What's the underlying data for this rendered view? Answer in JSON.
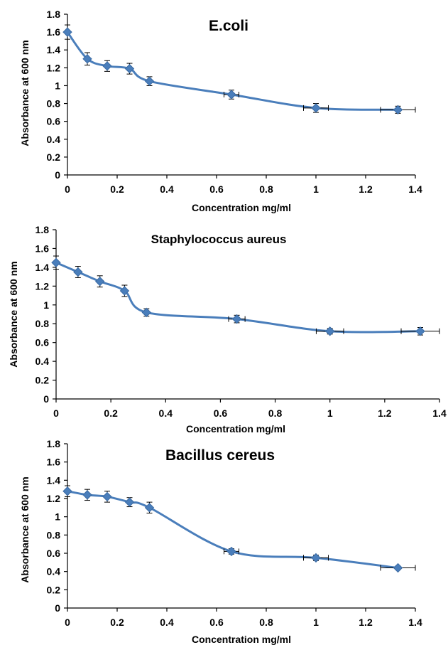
{
  "chart_data": [
    {
      "type": "line",
      "title": "E.coli",
      "xlabel": "Concentration mg/ml",
      "ylabel": "Absorbance at 600 nm",
      "xlim": [
        0,
        1.4
      ],
      "ylim": [
        0,
        1.8
      ],
      "xticks": [
        "0",
        "0.2",
        "0.4",
        "0.6",
        "0.8",
        "1",
        "1.2",
        "1.4"
      ],
      "yticks": [
        "0",
        "0.2",
        "0.4",
        "0.6",
        "0.8",
        "1",
        "1.2",
        "1.4",
        "1.6",
        "1.8"
      ],
      "x": [
        0,
        0.08,
        0.16,
        0.25,
        0.33,
        0.66,
        1.0,
        1.33
      ],
      "y": [
        1.6,
        1.3,
        1.22,
        1.19,
        1.05,
        0.9,
        0.75,
        0.73
      ],
      "y_err": [
        0.08,
        0.07,
        0.06,
        0.06,
        0.05,
        0.05,
        0.05,
        0.04
      ],
      "x_err": [
        0,
        0,
        0,
        0,
        0,
        0.03,
        0.05,
        0.07
      ]
    },
    {
      "type": "line",
      "title": "Staphylococcus aureus",
      "xlabel": "Concentration mg/ml",
      "ylabel": "Absorbance at 600 nm",
      "xlim": [
        0,
        1.4
      ],
      "ylim": [
        0,
        1.8
      ],
      "xticks": [
        "0",
        "0.2",
        "0.4",
        "0.6",
        "0.8",
        "1",
        "1.2",
        "1.4"
      ],
      "yticks": [
        "0",
        "0.2",
        "0.4",
        "0.6",
        "0.8",
        "1",
        "1.2",
        "1.4",
        "1.6",
        "1.8"
      ],
      "x": [
        0,
        0.08,
        0.16,
        0.25,
        0.33,
        0.66,
        1.0,
        1.33
      ],
      "y": [
        1.45,
        1.35,
        1.25,
        1.15,
        0.92,
        0.85,
        0.72,
        0.72
      ],
      "y_err": [
        0.07,
        0.06,
        0.06,
        0.06,
        0.04,
        0.04,
        0.03,
        0.04
      ],
      "x_err": [
        0,
        0,
        0,
        0,
        0,
        0.03,
        0.05,
        0.07
      ]
    },
    {
      "type": "line",
      "title": "Bacillus cereus",
      "xlabel": "Concentration mg/ml",
      "ylabel": "Absorbance at 600 nm",
      "xlim": [
        0,
        1.4
      ],
      "ylim": [
        0,
        1.8
      ],
      "xticks": [
        "0",
        "0.2",
        "0.4",
        "0.6",
        "0.8",
        "1",
        "1.2",
        "1.4"
      ],
      "yticks": [
        "0",
        "0.2",
        "0.4",
        "0.6",
        "0.8",
        "1",
        "1.2",
        "1.4",
        "1.6",
        "1.8"
      ],
      "x": [
        0,
        0.08,
        0.16,
        0.25,
        0.33,
        0.66,
        1.0,
        1.33
      ],
      "y": [
        1.28,
        1.24,
        1.22,
        1.16,
        1.1,
        0.62,
        0.55,
        0.44
      ],
      "y_err": [
        0.06,
        0.06,
        0.06,
        0.05,
        0.06,
        0.03,
        0.03,
        0.02
      ],
      "x_err": [
        0,
        0,
        0,
        0,
        0,
        0.03,
        0.05,
        0.07
      ]
    }
  ],
  "colors": {
    "series": "#4a7ebb",
    "error_bars": "#000000"
  }
}
